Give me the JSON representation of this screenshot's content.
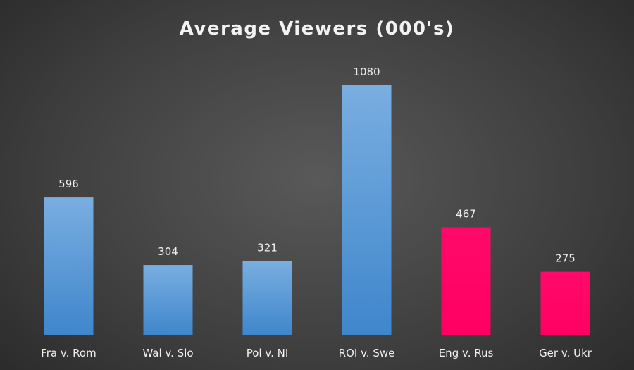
{
  "chart_data": {
    "type": "bar",
    "title": "Average Viewers (000's)",
    "xlabel": "",
    "ylabel": "",
    "ylim": [
      0,
      1150
    ],
    "grid": false,
    "categories": [
      "Fra v. Rom",
      "Wal v. Slo",
      "Pol v. NI",
      "ROI v. Swe",
      "Eng v. Rus",
      "Ger v. Ukr"
    ],
    "values": [
      596,
      304,
      321,
      1080,
      467,
      275
    ],
    "bar_colors": [
      "#5b9bd5",
      "#5b9bd5",
      "#5b9bd5",
      "#5b9bd5",
      "#ff0066",
      "#ff0066"
    ]
  }
}
